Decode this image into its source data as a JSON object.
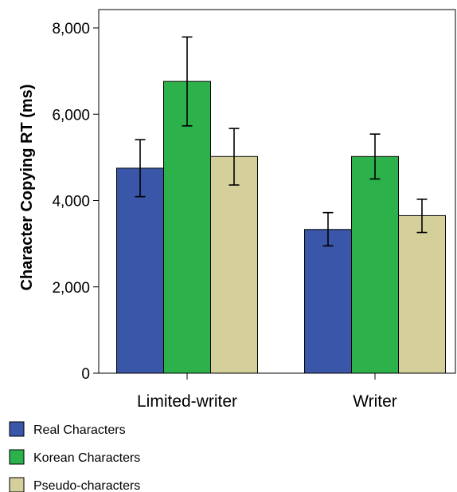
{
  "chart_data": {
    "type": "bar",
    "title": "",
    "xlabel": "",
    "ylabel": "Character Copying RT (ms)",
    "ylim": [
      0,
      8000
    ],
    "yticks": [
      0,
      2000,
      4000,
      6000,
      8000
    ],
    "ytick_labels": [
      "0",
      "2,000",
      "4,000",
      "6,000",
      "8,000"
    ],
    "categories": [
      "Limited-writer",
      "Writer"
    ],
    "series": [
      {
        "name": "Real Characters",
        "color": "#3a56a8",
        "values": [
          4750,
          3330
        ],
        "err_low": [
          4090,
          2950
        ],
        "err_high": [
          5410,
          3720
        ]
      },
      {
        "name": "Korean Characters",
        "color": "#2db14a",
        "values": [
          6760,
          5020
        ],
        "err_low": [
          5730,
          4500
        ],
        "err_high": [
          7790,
          5540
        ]
      },
      {
        "name": "Pseudo-characters",
        "color": "#d4cf9b",
        "values": [
          5020,
          3650
        ],
        "err_low": [
          4360,
          3260
        ],
        "err_high": [
          5670,
          4030
        ]
      }
    ],
    "legend_position": "bottom-left",
    "grid": false
  }
}
